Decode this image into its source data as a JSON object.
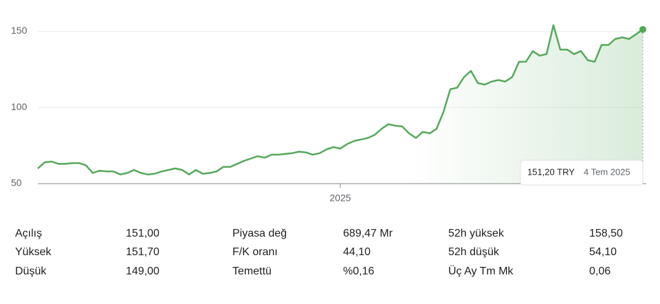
{
  "chart_data": {
    "type": "line",
    "categories": [
      null,
      null,
      null,
      null,
      null,
      null,
      null,
      null,
      null,
      null,
      null,
      null,
      null,
      null,
      null,
      null,
      null,
      null,
      null,
      null,
      null,
      null,
      null,
      null,
      null,
      null,
      null,
      null,
      null,
      null,
      null,
      null,
      null,
      null,
      null,
      null,
      null,
      null,
      null,
      null,
      null,
      null,
      null,
      null,
      "2025",
      null,
      null,
      null,
      null,
      null,
      null,
      null,
      null,
      null,
      null,
      null,
      null,
      null,
      null,
      null,
      null,
      null,
      null,
      null,
      null,
      null,
      null,
      null,
      null,
      null,
      null,
      null,
      null,
      null,
      null,
      null,
      null,
      null,
      null,
      null,
      null,
      null,
      null,
      null,
      null,
      null,
      null,
      null,
      null
    ],
    "series": [
      {
        "color": "#55a85a",
        "values": [
          60,
          64,
          64.5,
          63,
          63,
          63.5,
          63.5,
          62,
          57,
          58.5,
          58,
          58,
          56,
          57,
          59,
          57,
          56,
          56.5,
          58,
          59,
          60,
          59,
          56,
          59,
          56.5,
          57,
          58,
          61,
          61,
          63,
          65,
          66.5,
          68,
          67,
          69,
          69,
          69.5,
          70,
          71,
          70.5,
          69,
          70,
          72.5,
          74,
          73,
          76,
          78,
          79,
          80,
          82,
          86,
          89,
          88,
          87.5,
          83,
          80,
          84,
          83,
          86,
          97,
          112,
          113,
          120,
          124,
          116,
          115,
          117,
          118,
          117,
          120,
          130,
          130,
          137,
          134,
          135,
          154,
          138,
          138,
          135,
          137,
          131,
          130,
          141,
          141,
          145,
          146,
          145,
          148,
          151.2
        ]
      }
    ],
    "ylim": [
      50,
      157
    ],
    "yticks": [
      50,
      100,
      150
    ],
    "grid": true,
    "tooltip": {
      "value": 151.2,
      "label": "151,20 TRY",
      "date": "4 Tem 2025"
    }
  },
  "stats": [
    [
      [
        "Açılış",
        "151,00"
      ],
      [
        "Piyasa değ",
        "689,47 Mr"
      ],
      [
        "52h yüksek",
        "158,50"
      ]
    ],
    [
      [
        "Yüksek",
        "151,70"
      ],
      [
        "F/K oranı",
        "44,10"
      ],
      [
        "52h düşük",
        "54,10"
      ]
    ],
    [
      [
        "Düşük",
        "149,00"
      ],
      [
        "Temettü",
        "%0,16"
      ],
      [
        "Üç Ay Tm Mk",
        "0,06"
      ]
    ]
  ]
}
